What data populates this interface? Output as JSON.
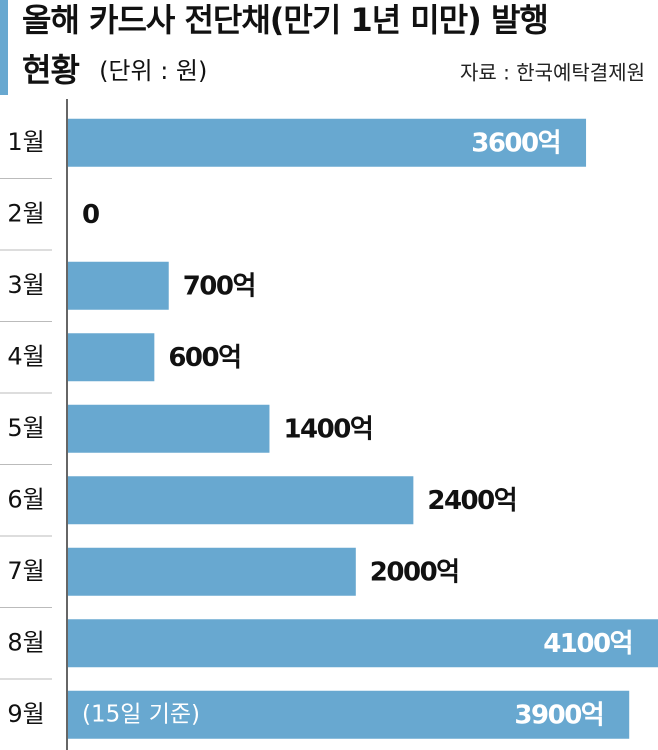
{
  "chart_data": {
    "type": "bar",
    "orientation": "horizontal",
    "title": [
      "올해 카드사 전단채(만기 1년 미만) 발행",
      "현황"
    ],
    "unit": "(단위 : 원)",
    "source": "자료 : 한국예탁결제원",
    "categories": [
      "1월",
      "2월",
      "3월",
      "4월",
      "5월",
      "6월",
      "7월",
      "8월",
      "9월"
    ],
    "values": [
      3600,
      0,
      700,
      600,
      1400,
      2400,
      2000,
      4100,
      3900
    ],
    "value_labels": [
      "3600억",
      "0",
      "700억",
      "600억",
      "1400억",
      "2400억",
      "2000억",
      "4100억",
      "3900억"
    ],
    "annotation": "(15일 기준)",
    "color": "#68a8d0",
    "xlim": [
      0,
      4100
    ]
  }
}
